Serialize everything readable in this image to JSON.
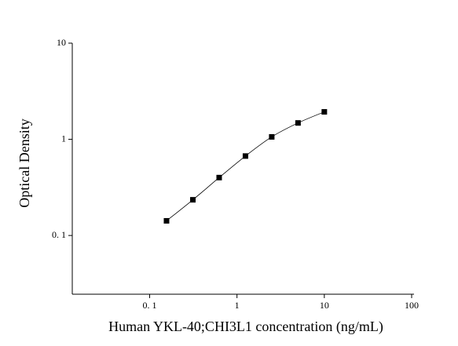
{
  "chart_data": {
    "type": "scatter",
    "x_label": "Human YKL-40;CHI3L1 concentration (ng/mL)",
    "y_label": "Optical Density",
    "x_scale": "log",
    "y_scale": "log",
    "xlim": [
      0.013,
      100
    ],
    "ylim": [
      0.0245,
      10
    ],
    "xticks": [
      {
        "value": 0.1,
        "label": "0. 1"
      },
      1,
      10,
      100
    ],
    "yticks": [
      {
        "value": 0.1,
        "label": "0. 1"
      },
      1,
      10
    ],
    "series": [
      {
        "color": "#000000",
        "curve": true,
        "x": [
          0.156,
          0.3125,
          0.625,
          1.25,
          2.5,
          5,
          10
        ],
        "values": [
          0.142,
          0.235,
          0.4,
          0.67,
          1.06,
          1.48,
          1.93
        ]
      }
    ]
  }
}
